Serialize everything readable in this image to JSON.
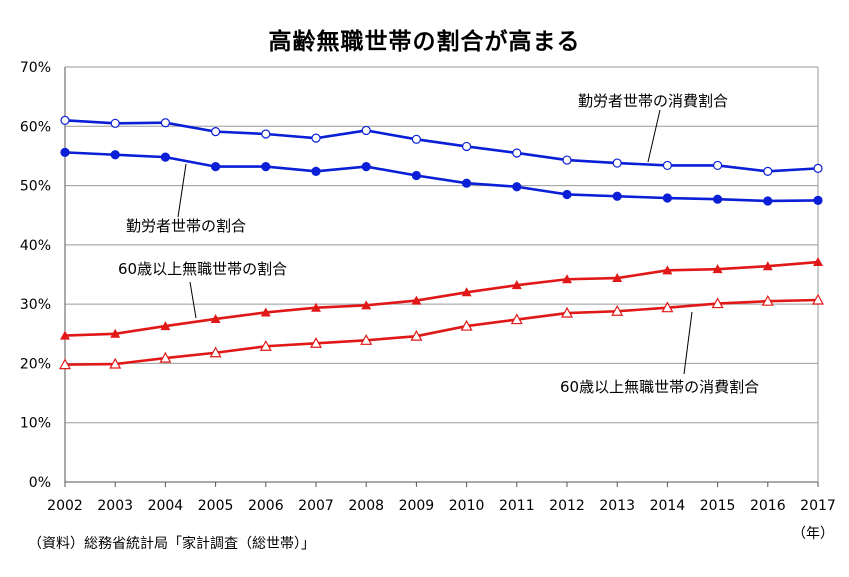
{
  "chart_data": {
    "type": "line",
    "title": "高齢無職世帯の割合が高まる",
    "x": [
      2002,
      2003,
      2004,
      2005,
      2006,
      2007,
      2008,
      2009,
      2010,
      2011,
      2012,
      2013,
      2014,
      2015,
      2016,
      2017
    ],
    "x_unit": "（年）",
    "ylim": [
      0,
      70
    ],
    "yticks": [
      "0%",
      "10%",
      "20%",
      "30%",
      "40%",
      "50%",
      "60%",
      "70%"
    ],
    "grid": true,
    "series": [
      {
        "name": "勤労者世帯の消費割合",
        "color": "#0a1fd6",
        "marker": "open-circle",
        "values": [
          61.0,
          60.5,
          60.6,
          59.1,
          58.7,
          58.0,
          59.3,
          57.8,
          56.6,
          55.5,
          54.3,
          53.8,
          53.4,
          53.4,
          52.4,
          52.9
        ]
      },
      {
        "name": "勤労者世帯の割合",
        "color": "#0a1fd6",
        "marker": "filled-circle",
        "values": [
          55.6,
          55.2,
          54.8,
          53.2,
          53.2,
          52.4,
          53.2,
          51.7,
          50.4,
          49.8,
          48.5,
          48.2,
          47.9,
          47.7,
          47.4,
          47.5
        ]
      },
      {
        "name": "60歳以上無職世帯の割合",
        "color": "#e01818",
        "marker": "filled-triangle",
        "values": [
          24.7,
          25.0,
          26.3,
          27.5,
          28.6,
          29.4,
          29.8,
          30.6,
          32.0,
          33.2,
          34.2,
          34.4,
          35.7,
          35.9,
          36.4,
          37.1
        ]
      },
      {
        "name": "60歳以上無職世帯の消費割合",
        "color": "#e01818",
        "marker": "open-triangle",
        "values": [
          19.8,
          19.9,
          20.9,
          21.8,
          22.9,
          23.4,
          23.9,
          24.6,
          26.3,
          27.4,
          28.5,
          28.8,
          29.4,
          30.1,
          30.5,
          30.7
        ]
      }
    ]
  },
  "source_note": "（資料）総務省統計局「家計調査（総世帯）」"
}
